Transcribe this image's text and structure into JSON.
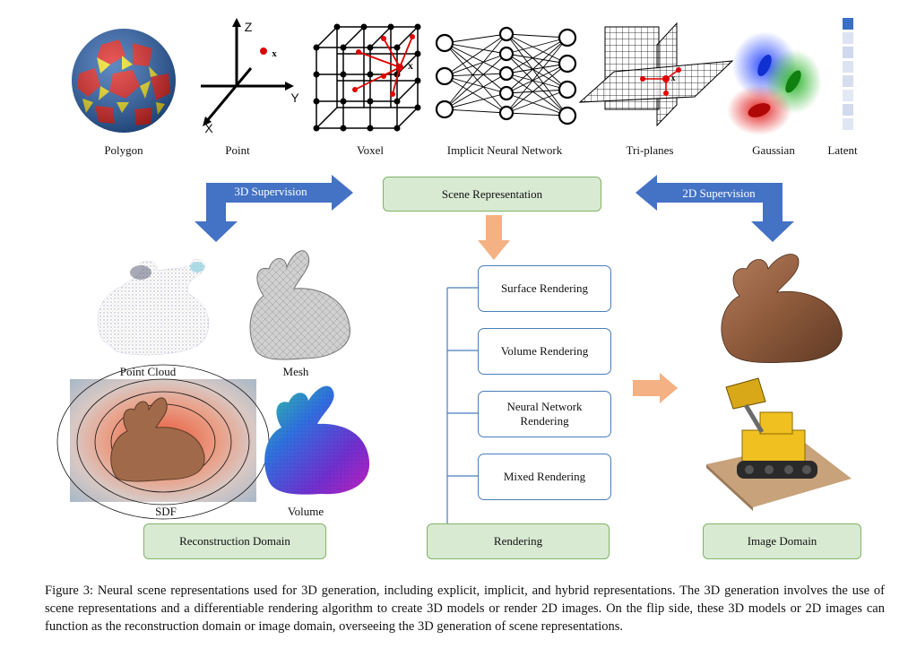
{
  "top_row": {
    "polygon_label": "Polygon",
    "point_label": "Point",
    "voxel_label": "Voxel",
    "implicit_label": "Implicit Neural Network",
    "triplanes_label": "Tri-planes",
    "gaussian_label": "Gaussian",
    "latent_label": "Latent"
  },
  "axes": {
    "z": "Z",
    "y": "Y",
    "x": "X",
    "point": "x",
    "voxel_point": "x",
    "triplane_point": "x"
  },
  "supervision": {
    "left": "3D Supervision",
    "right": "2D Supervision"
  },
  "center": {
    "scene_representation": "Scene Representation",
    "rendering_methods": [
      "Surface Rendering",
      "Volume Rendering",
      "Neural Network Rendering",
      "Mixed Rendering"
    ],
    "rendering": "Rendering"
  },
  "reconstruction": {
    "point_cloud_label": "Point Cloud",
    "mesh_label": "Mesh",
    "sdf_label": "SDF",
    "volume_label": "Volume",
    "domain_label": "Reconstruction Domain"
  },
  "image": {
    "domain_label": "Image Domain"
  },
  "caption": "Figure 3: Neural scene representations used for 3D generation, including explicit, implicit, and hybrid representations. The 3D generation involves the use of scene representations and a differentiable rendering algorithm to create 3D models or render 2D images. On the flip side, these 3D models or 2D images can function as the reconstruction domain or image domain, overseeing the 3D generation of scene representations.",
  "colors": {
    "green_fill": "#d9ead3",
    "green_border": "#82b366",
    "blue_arrow": "#4472c4",
    "orange_arrow": "#f4b183",
    "box_border": "#4a7ebb"
  }
}
